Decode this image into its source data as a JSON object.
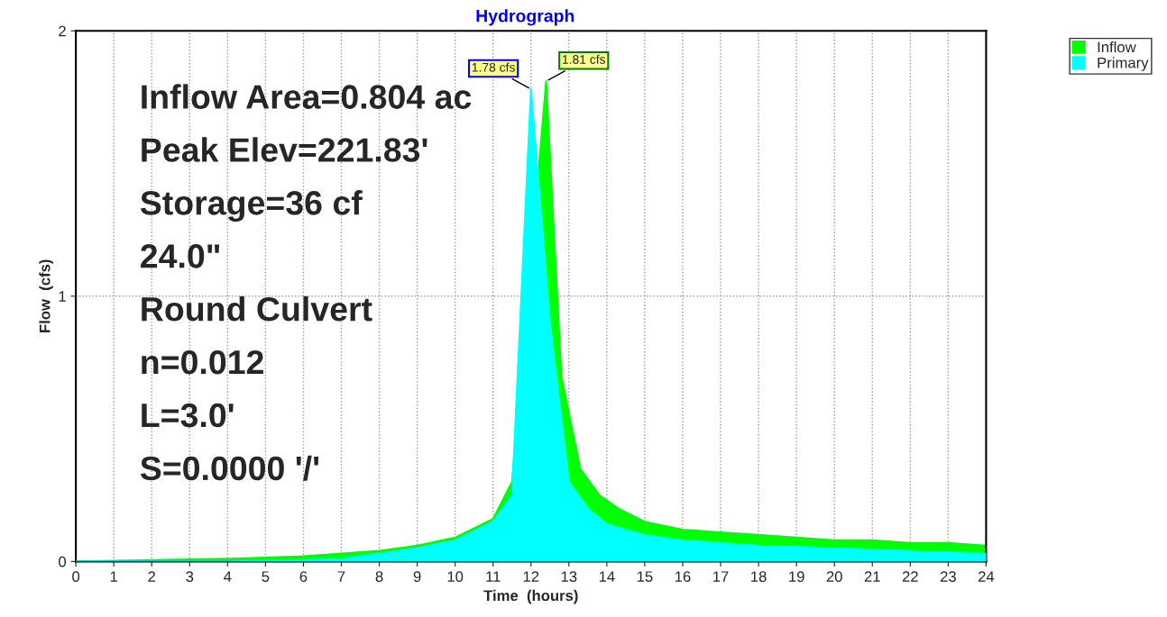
{
  "chart_data": {
    "type": "area",
    "title": "Hydrograph",
    "xlabel": "Time  (hours)",
    "ylabel": "Flow  (cfs)",
    "xlim": [
      0,
      24
    ],
    "xticks": [
      0,
      1,
      2,
      3,
      4,
      5,
      6,
      7,
      8,
      9,
      10,
      11,
      12,
      13,
      14,
      15,
      16,
      17,
      18,
      19,
      20,
      21,
      22,
      23,
      24
    ],
    "ylim": [
      0,
      2
    ],
    "yticks": [
      0,
      1,
      2
    ],
    "grid": true,
    "legend": "top right",
    "series": [
      {
        "name": "Inflow",
        "color": "#00ff00",
        "x": [
          0,
          2,
          4,
          5,
          6,
          7,
          8,
          9,
          10,
          11,
          11.5,
          12.4,
          12.8,
          13.3,
          13.8,
          14.3,
          15,
          16,
          17,
          18,
          19,
          20,
          21,
          22,
          23,
          24
        ],
        "values": [
          0,
          0.005,
          0.01,
          0.015,
          0.02,
          0.03,
          0.04,
          0.06,
          0.09,
          0.16,
          0.3,
          1.81,
          0.7,
          0.35,
          0.25,
          0.2,
          0.15,
          0.12,
          0.11,
          0.1,
          0.09,
          0.08,
          0.08,
          0.07,
          0.07,
          0.06
        ]
      },
      {
        "name": "Primary",
        "color": "#00ffff",
        "x": [
          0,
          2,
          4,
          5,
          6,
          7,
          8,
          9,
          10,
          11,
          11.5,
          12,
          12.5,
          13,
          13.5,
          14,
          15,
          16,
          17,
          18,
          19,
          20,
          21,
          22,
          23,
          24
        ],
        "values": [
          0,
          0,
          0,
          0.002,
          0.005,
          0.01,
          0.03,
          0.05,
          0.08,
          0.15,
          0.25,
          1.78,
          0.9,
          0.3,
          0.2,
          0.14,
          0.1,
          0.08,
          0.07,
          0.06,
          0.055,
          0.05,
          0.045,
          0.04,
          0.035,
          0.03
        ]
      }
    ],
    "annotations": [
      {
        "text": "1.81 cfs",
        "x": 12.4,
        "y": 1.81
      },
      {
        "text": "1.78 cfs",
        "x": 12,
        "y": 1.78
      },
      "Inflow Area=0.804 ac",
      "Peak Elev=221.83'",
      "Storage=36 cf",
      "24.0\"",
      "Round Culvert",
      "n=0.012",
      "L=3.0'",
      "S=0.0000 '/'"
    ]
  }
}
